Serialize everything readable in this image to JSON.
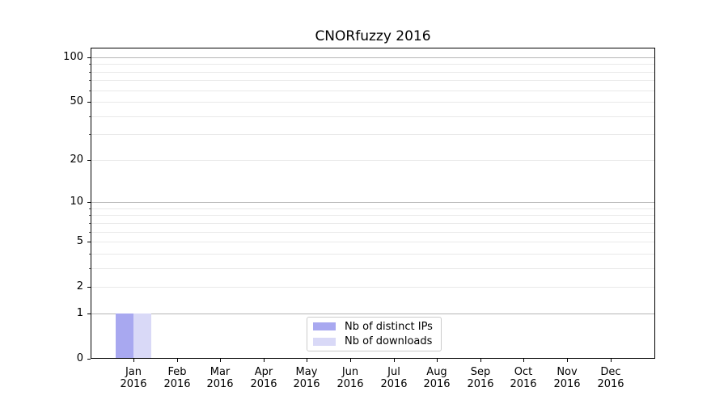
{
  "chart_data": {
    "type": "bar",
    "title": "CNORfuzzy 2016",
    "categories": [
      "Jan",
      "Feb",
      "Mar",
      "Apr",
      "May",
      "Jun",
      "Jul",
      "Aug",
      "Sep",
      "Oct",
      "Nov",
      "Dec"
    ],
    "x_year_label": "2016",
    "series": [
      {
        "name": "Nb of distinct IPs",
        "color": "#a8a8f0",
        "values": [
          1,
          0,
          0,
          0,
          0,
          0,
          0,
          0,
          0,
          0,
          0,
          0
        ]
      },
      {
        "name": "Nb of downloads",
        "color": "#d9d9f7",
        "values": [
          1,
          0,
          0,
          0,
          0,
          0,
          0,
          0,
          0,
          0,
          0,
          0
        ]
      }
    ],
    "y_axis": {
      "scale": "log1p",
      "tick_labels": [
        "0",
        "1",
        "2",
        "5",
        "10",
        "20",
        "50",
        "100"
      ],
      "tick_values": [
        0,
        1,
        2,
        5,
        10,
        20,
        50,
        100
      ],
      "max": 116,
      "major_gridlines": [
        1,
        10,
        100
      ],
      "minor_gridlines": [
        2,
        3,
        4,
        5,
        6,
        7,
        8,
        9,
        20,
        30,
        40,
        50,
        60,
        70,
        80,
        90
      ]
    },
    "legend": {
      "position": "lower center"
    },
    "grid": true,
    "colors": {
      "major_grid": "#b6b6b6",
      "minor_grid": "#e9e9e9",
      "spine": "#000000"
    }
  }
}
